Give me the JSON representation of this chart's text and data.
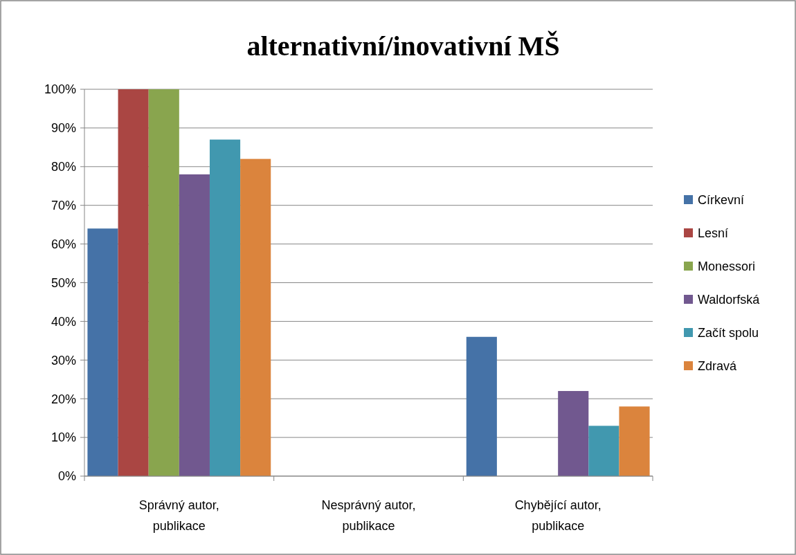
{
  "chart_data": {
    "type": "bar",
    "title": "alternativní/inovativní MŠ",
    "categories": [
      "Správný autor, publikace",
      "Nesprávný autor, publikace",
      "Chybějící autor, publikace"
    ],
    "series": [
      {
        "name": "Církevní",
        "color": "#4572a7",
        "values": [
          64,
          0,
          36
        ]
      },
      {
        "name": "Lesní",
        "color": "#aa4643",
        "values": [
          100,
          0,
          0
        ]
      },
      {
        "name": "Monessori",
        "color": "#89a54e",
        "values": [
          100,
          0,
          0
        ]
      },
      {
        "name": "Waldorfská",
        "color": "#71588f",
        "values": [
          78,
          0,
          22
        ]
      },
      {
        "name": "Začít spolu",
        "color": "#4198af",
        "values": [
          87,
          0,
          13
        ]
      },
      {
        "name": "Zdravá",
        "color": "#db843d",
        "values": [
          82,
          0,
          18
        ]
      }
    ],
    "ylim": [
      0,
      100
    ],
    "yticks": [
      {
        "value": 0,
        "label": "0%"
      },
      {
        "value": 10,
        "label": "10%"
      },
      {
        "value": 20,
        "label": "20%"
      },
      {
        "value": 30,
        "label": "30%"
      },
      {
        "value": 40,
        "label": "40%"
      },
      {
        "value": 50,
        "label": "50%"
      },
      {
        "value": 60,
        "label": "60%"
      },
      {
        "value": 70,
        "label": "70%"
      },
      {
        "value": 80,
        "label": "80%"
      },
      {
        "value": 90,
        "label": "90%"
      },
      {
        "value": 100,
        "label": "100%"
      }
    ],
    "grid": "y",
    "legend": "right"
  }
}
